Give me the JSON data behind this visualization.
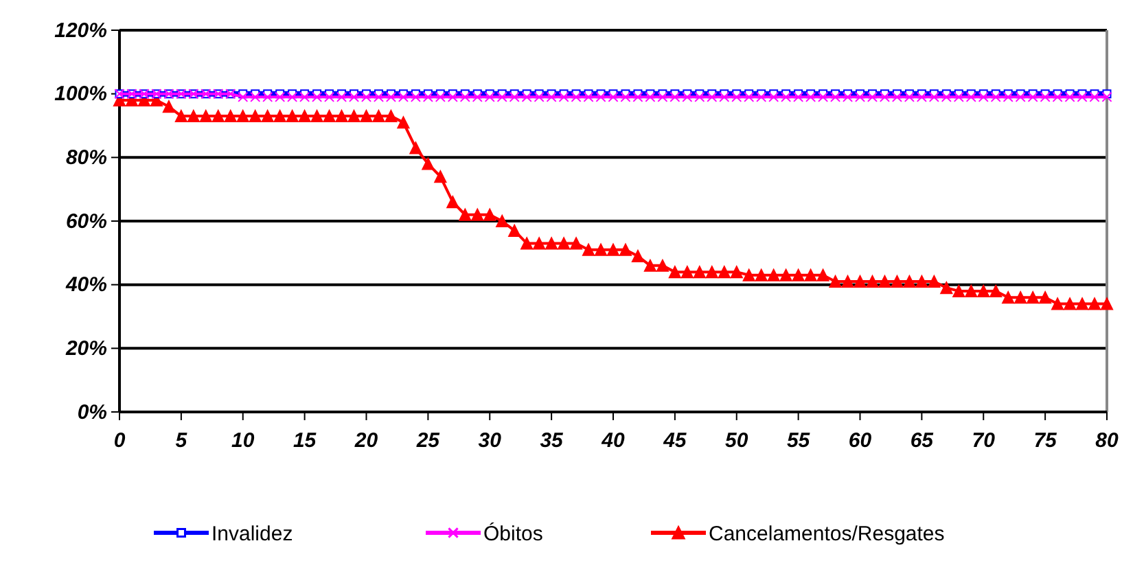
{
  "chart_data": {
    "type": "line",
    "x": [
      0,
      1,
      2,
      3,
      4,
      5,
      6,
      7,
      8,
      9,
      10,
      11,
      12,
      13,
      14,
      15,
      16,
      17,
      18,
      19,
      20,
      21,
      22,
      23,
      24,
      25,
      26,
      27,
      28,
      29,
      30,
      31,
      32,
      33,
      34,
      35,
      36,
      37,
      38,
      39,
      40,
      41,
      42,
      43,
      44,
      45,
      46,
      47,
      48,
      49,
      50,
      51,
      52,
      53,
      54,
      55,
      56,
      57,
      58,
      59,
      60,
      61,
      62,
      63,
      64,
      65,
      66,
      67,
      68,
      69,
      70,
      71,
      72,
      73,
      74,
      75,
      76,
      77,
      78,
      79,
      80
    ],
    "series": [
      {
        "name": "Invalidez",
        "color": "#0000ff",
        "marker": "square",
        "values": [
          100,
          100,
          100,
          100,
          100,
          100,
          100,
          100,
          100,
          100,
          100,
          100,
          100,
          100,
          100,
          100,
          100,
          100,
          100,
          100,
          100,
          100,
          100,
          100,
          100,
          100,
          100,
          100,
          100,
          100,
          100,
          100,
          100,
          100,
          100,
          100,
          100,
          100,
          100,
          100,
          100,
          100,
          100,
          100,
          100,
          100,
          100,
          100,
          100,
          100,
          100,
          100,
          100,
          100,
          100,
          100,
          100,
          100,
          100,
          100,
          100,
          100,
          100,
          100,
          100,
          100,
          100,
          100,
          100,
          100,
          100,
          100,
          100,
          100,
          100,
          100,
          100,
          100,
          100,
          100,
          100
        ]
      },
      {
        "name": "Óbitos",
        "color": "#ff00ff",
        "marker": "cross",
        "values": [
          100,
          100,
          100,
          100,
          100,
          100,
          100,
          100,
          100,
          100,
          99,
          99,
          99,
          99,
          99,
          99,
          99,
          99,
          99,
          99,
          99,
          99,
          99,
          99,
          99,
          99,
          99,
          99,
          99,
          99,
          99,
          99,
          99,
          99,
          99,
          99,
          99,
          99,
          99,
          99,
          99,
          99,
          99,
          99,
          99,
          99,
          99,
          99,
          99,
          99,
          99,
          99,
          99,
          99,
          99,
          99,
          99,
          99,
          99,
          99,
          99,
          99,
          99,
          99,
          99,
          99,
          99,
          99,
          99,
          99,
          99,
          99,
          99,
          99,
          99,
          99,
          99,
          99,
          99,
          99,
          99
        ]
      },
      {
        "name": "Cancelamentos/Resgates",
        "color": "#ff0000",
        "marker": "triangle",
        "values": [
          98,
          98,
          98,
          98,
          96,
          93,
          93,
          93,
          93,
          93,
          93,
          93,
          93,
          93,
          93,
          93,
          93,
          93,
          93,
          93,
          93,
          93,
          93,
          91,
          83,
          78,
          74,
          66,
          62,
          62,
          62,
          60,
          57,
          53,
          53,
          53,
          53,
          53,
          51,
          51,
          51,
          51,
          49,
          46,
          46,
          44,
          44,
          44,
          44,
          44,
          44,
          43,
          43,
          43,
          43,
          43,
          43,
          43,
          41,
          41,
          41,
          41,
          41,
          41,
          41,
          41,
          41,
          39,
          38,
          38,
          38,
          38,
          36,
          36,
          36,
          36,
          34,
          34,
          34,
          34,
          34
        ]
      }
    ],
    "xlim": [
      0,
      80
    ],
    "xticks": [
      0,
      5,
      10,
      15,
      20,
      25,
      30,
      35,
      40,
      45,
      50,
      55,
      60,
      65,
      70,
      75,
      80
    ],
    "ylim": [
      0,
      120
    ],
    "yticks": [
      {
        "value": 0,
        "label": "0%"
      },
      {
        "value": 20,
        "label": "20%"
      },
      {
        "value": 40,
        "label": "40%"
      },
      {
        "value": 60,
        "label": "60%"
      },
      {
        "value": 80,
        "label": "80%"
      },
      {
        "value": 100,
        "label": "100%"
      },
      {
        "value": 120,
        "label": "120%"
      }
    ],
    "grid": "y",
    "legend": "bottom"
  }
}
